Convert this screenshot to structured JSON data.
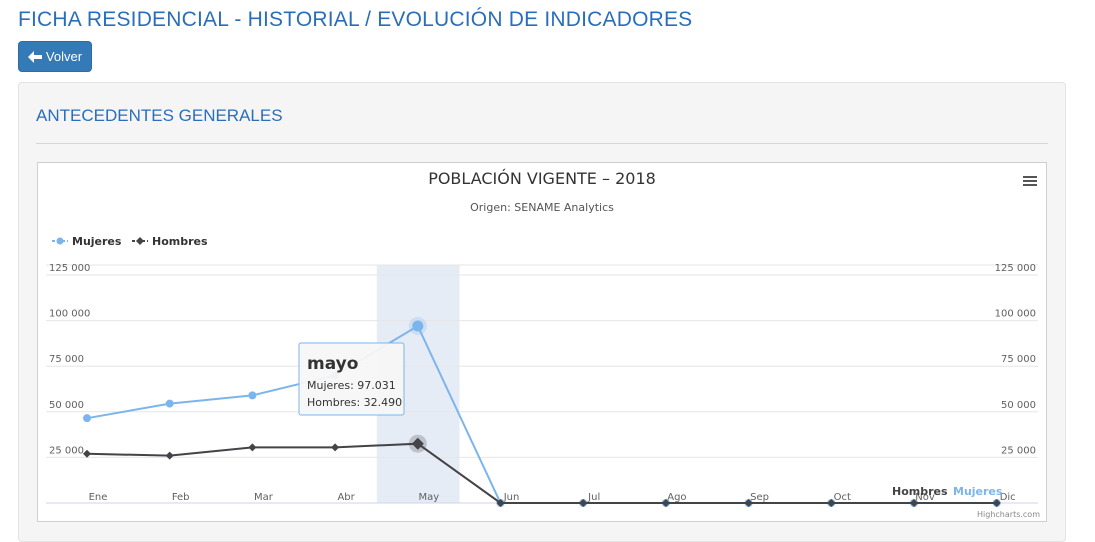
{
  "header": {
    "title": "FICHA RESIDENCIAL - HISTORIAL / EVOLUCIÓN DE INDICADORES",
    "back_label": "Volver"
  },
  "section": {
    "title": "ANTECEDENTES GENERALES"
  },
  "chart_menu_icon": "hamburger-menu-icon",
  "colors": {
    "accent": "#2a6ebb",
    "mujeres": "#7cb5ec",
    "hombres": "#434348",
    "highlight_band": "#e6ecf6"
  },
  "chart_data": {
    "type": "line",
    "title": "POBLACIÓN VIGENTE – 2018",
    "subtitle": "Origen: SENAME Analytics",
    "categories": [
      "Ene",
      "Feb",
      "Mar",
      "Abr",
      "May",
      "Jun",
      "Jul",
      "Ago",
      "Sep",
      "Oct",
      "Nov",
      "Dic"
    ],
    "series": [
      {
        "name": "Mujeres",
        "color": "#7cb5ec",
        "marker": "circle",
        "values": [
          46500,
          54500,
          59000,
          70000,
          97031,
          0,
          0,
          0,
          0,
          0,
          0,
          0
        ]
      },
      {
        "name": "Hombres",
        "color": "#434348",
        "marker": "diamond",
        "values": [
          27000,
          26000,
          30500,
          30500,
          32490,
          0,
          0,
          0,
          0,
          0,
          0,
          0
        ]
      }
    ],
    "y_ticks": [
      "125 000",
      "100 000",
      "75 000",
      "50 000",
      "25 000"
    ],
    "ylim": [
      0,
      125000
    ],
    "legend_placement": "top-left",
    "end_labels": [
      "Hombres",
      "Mujeres"
    ],
    "highlighted_category": "May",
    "grid": true,
    "credits": "Highcharts.com",
    "tooltip": {
      "title": "mayo",
      "lines": [
        "Mujeres: 97.031",
        "Hombres: 32.490"
      ]
    }
  }
}
